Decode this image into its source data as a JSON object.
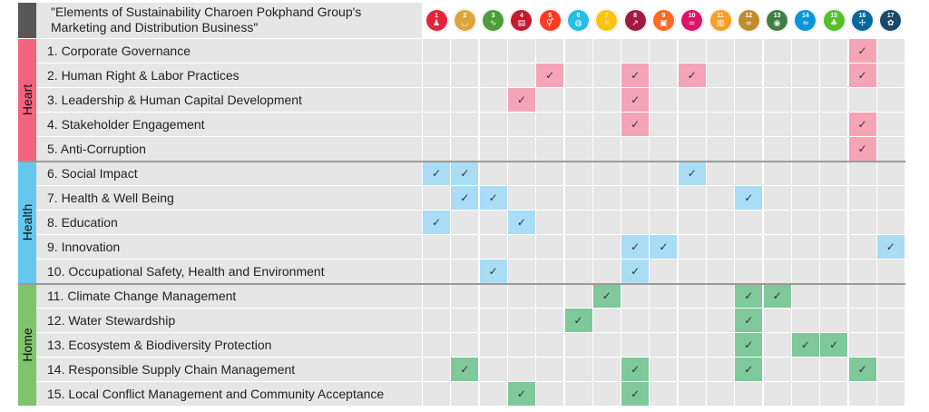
{
  "title": "\"Elements of Sustainability Charoen Pokphand Group's\nMarketing and Distribution Business\"",
  "chart_data": {
    "type": "table",
    "columns": [
      "1",
      "2",
      "3",
      "4",
      "5",
      "6",
      "7",
      "8",
      "9",
      "10",
      "11",
      "12",
      "13",
      "14",
      "15",
      "16",
      "17"
    ],
    "groups": [
      {
        "label": "Heart",
        "color": "#f2637e",
        "check_color": "#f4a4b6",
        "rows": [
          {
            "label": "1. Corporate Governance",
            "checks": [
              16
            ]
          },
          {
            "label": "2. Human Right & Labor Practices",
            "checks": [
              5,
              8,
              10,
              16
            ]
          },
          {
            "label": "3. Leadership & Human Capital Development",
            "checks": [
              4,
              8
            ]
          },
          {
            "label": "4. Stakeholder Engagement",
            "checks": [
              8,
              16
            ]
          },
          {
            "label": "5. Anti-Corruption",
            "checks": [
              16
            ]
          }
        ]
      },
      {
        "label": "Health",
        "color": "#64c7ee",
        "check_color": "#a9ddf5",
        "rows": [
          {
            "label": "6. Social Impact",
            "checks": [
              1,
              2,
              10
            ]
          },
          {
            "label": "7. Health & Well Being",
            "checks": [
              2,
              3,
              12
            ]
          },
          {
            "label": "8. Education",
            "checks": [
              1,
              4
            ]
          },
          {
            "label": "9. Innovation",
            "checks": [
              8,
              9,
              17
            ]
          },
          {
            "label": "10. Occupational Safety, Health and Environment",
            "checks": [
              3,
              8
            ]
          }
        ]
      },
      {
        "label": "Home",
        "color": "#7ec46a",
        "check_color": "#7ec89a",
        "rows": [
          {
            "label": "11. Climate Change Management",
            "checks": [
              7,
              12,
              13
            ]
          },
          {
            "label": "12. Water Stewardship",
            "checks": [
              6,
              12
            ]
          },
          {
            "label": "13. Ecosystem & Biodiversity Protection",
            "checks": [
              12,
              14,
              15
            ]
          },
          {
            "label": "14. Responsible Supply Chain Management",
            "checks": [
              2,
              8,
              12,
              16
            ]
          },
          {
            "label": "15. Local Conflict Management and Community Acceptance",
            "checks": [
              4,
              8
            ]
          }
        ]
      }
    ]
  },
  "sdg_icons": [
    {
      "num": "1",
      "color": "#e5243b",
      "icon": "people-icon"
    },
    {
      "num": "2",
      "color": "#dda63a",
      "icon": "bowl-icon"
    },
    {
      "num": "3",
      "color": "#4c9f38",
      "icon": "heartbeat-icon"
    },
    {
      "num": "4",
      "color": "#c5192d",
      "icon": "book-icon"
    },
    {
      "num": "5",
      "color": "#ff3a21",
      "icon": "gender-icon"
    },
    {
      "num": "6",
      "color": "#26bde2",
      "icon": "water-drop-icon"
    },
    {
      "num": "7",
      "color": "#fcc30b",
      "icon": "sun-icon"
    },
    {
      "num": "8",
      "color": "#a21942",
      "icon": "growth-chart-icon"
    },
    {
      "num": "9",
      "color": "#fd6925",
      "icon": "cubes-icon"
    },
    {
      "num": "10",
      "color": "#dd1367",
      "icon": "equals-icon"
    },
    {
      "num": "11",
      "color": "#fd9d24",
      "icon": "city-icon"
    },
    {
      "num": "12",
      "color": "#bf8b2e",
      "icon": "infinity-icon"
    },
    {
      "num": "13",
      "color": "#3f7e44",
      "icon": "eye-globe-icon"
    },
    {
      "num": "14",
      "color": "#0a97d9",
      "icon": "fish-icon"
    },
    {
      "num": "15",
      "color": "#56c02b",
      "icon": "tree-icon"
    },
    {
      "num": "16",
      "color": "#00689d",
      "icon": "dove-icon"
    },
    {
      "num": "17",
      "color": "#19486a",
      "icon": "ring-icon"
    }
  ],
  "check_glyph": "✓"
}
